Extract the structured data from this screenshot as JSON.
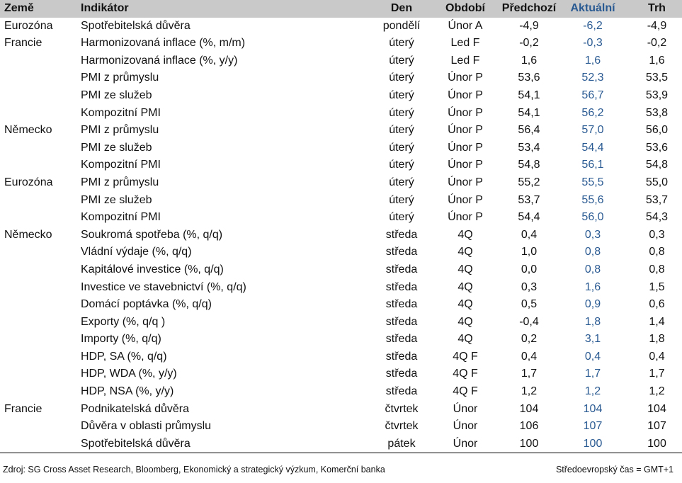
{
  "header": {
    "zeme": "Země",
    "indikator": "Indikátor",
    "den": "Den",
    "obdobi": "Období",
    "predchozi": "Předchozí",
    "aktualni": "Aktuální",
    "trh": "Trh"
  },
  "rows": [
    {
      "zeme": "Eurozóna",
      "indikator": "Spotřebitelská důvěra",
      "den": "pondělí",
      "obdobi": "Únor A",
      "predchozi": "-4,9",
      "aktualni": "-6,2",
      "trh": "-4,9"
    },
    {
      "zeme": "Francie",
      "indikator": "Harmonizovaná inflace (%, m/m)",
      "den": "úterý",
      "obdobi": "Led F",
      "predchozi": "-0,2",
      "aktualni": "-0,3",
      "trh": "-0,2"
    },
    {
      "zeme": "",
      "indikator": "Harmonizovaná inflace (%, y/y)",
      "den": "úterý",
      "obdobi": "Led F",
      "predchozi": "1,6",
      "aktualni": "1,6",
      "trh": "1,6"
    },
    {
      "zeme": "",
      "indikator": "PMI z průmyslu",
      "den": "úterý",
      "obdobi": "Únor P",
      "predchozi": "53,6",
      "aktualni": "52,3",
      "trh": "53,5"
    },
    {
      "zeme": "",
      "indikator": "PMI ze služeb",
      "den": "úterý",
      "obdobi": "Únor P",
      "predchozi": "54,1",
      "aktualni": "56,7",
      "trh": "53,9"
    },
    {
      "zeme": "",
      "indikator": "Kompozitní PMI",
      "den": "úterý",
      "obdobi": "Únor P",
      "predchozi": "54,1",
      "aktualni": "56,2",
      "trh": "53,8"
    },
    {
      "zeme": "Německo",
      "indikator": "PMI z průmyslu",
      "den": "úterý",
      "obdobi": "Únor P",
      "predchozi": "56,4",
      "aktualni": "57,0",
      "trh": "56,0"
    },
    {
      "zeme": "",
      "indikator": "PMI ze služeb",
      "den": "úterý",
      "obdobi": "Únor P",
      "predchozi": "53,4",
      "aktualni": "54,4",
      "trh": "53,6"
    },
    {
      "zeme": "",
      "indikator": "Kompozitní PMI",
      "den": "úterý",
      "obdobi": "Únor P",
      "predchozi": "54,8",
      "aktualni": "56,1",
      "trh": "54,8"
    },
    {
      "zeme": "Eurozóna",
      "indikator": "PMI z průmyslu",
      "den": "úterý",
      "obdobi": "Únor P",
      "predchozi": "55,2",
      "aktualni": "55,5",
      "trh": "55,0"
    },
    {
      "zeme": "",
      "indikator": "PMI ze služeb",
      "den": "úterý",
      "obdobi": "Únor P",
      "predchozi": "53,7",
      "aktualni": "55,6",
      "trh": "53,7"
    },
    {
      "zeme": "",
      "indikator": "Kompozitní PMI",
      "den": "úterý",
      "obdobi": "Únor P",
      "predchozi": "54,4",
      "aktualni": "56,0",
      "trh": "54,3"
    },
    {
      "zeme": "Německo",
      "indikator": "Soukromá spotřeba (%, q/q)",
      "den": "středa",
      "obdobi": "4Q",
      "predchozi": "0,4",
      "aktualni": "0,3",
      "trh": "0,3"
    },
    {
      "zeme": "",
      "indikator": "Vládní výdaje (%, q/q)",
      "den": "středa",
      "obdobi": "4Q",
      "predchozi": "1,0",
      "aktualni": "0,8",
      "trh": "0,8"
    },
    {
      "zeme": "",
      "indikator": "Kapitálové investice (%, q/q)",
      "den": "středa",
      "obdobi": "4Q",
      "predchozi": "0,0",
      "aktualni": "0,8",
      "trh": "0,8"
    },
    {
      "zeme": "",
      "indikator": "Investice ve stavebnictví (%, q/q)",
      "den": "středa",
      "obdobi": "4Q",
      "predchozi": "0,3",
      "aktualni": "1,6",
      "trh": "1,5"
    },
    {
      "zeme": "",
      "indikator": "Domácí poptávka (%, q/q)",
      "den": "středa",
      "obdobi": "4Q",
      "predchozi": "0,5",
      "aktualni": "0,9",
      "trh": "0,6"
    },
    {
      "zeme": "",
      "indikator": "Exporty (%, q/q )",
      "den": "středa",
      "obdobi": "4Q",
      "predchozi": "-0,4",
      "aktualni": "1,8",
      "trh": "1,4"
    },
    {
      "zeme": "",
      "indikator": "Importy (%, q/q)",
      "den": "středa",
      "obdobi": "4Q",
      "predchozi": "0,2",
      "aktualni": "3,1",
      "trh": "1,8"
    },
    {
      "zeme": "",
      "indikator": "HDP, SA (%, q/q)",
      "den": "středa",
      "obdobi": "4Q F",
      "predchozi": "0,4",
      "aktualni": "0,4",
      "trh": "0,4"
    },
    {
      "zeme": "",
      "indikator": "HDP, WDA (%, y/y)",
      "den": "středa",
      "obdobi": "4Q F",
      "predchozi": "1,7",
      "aktualni": "1,7",
      "trh": "1,7"
    },
    {
      "zeme": "",
      "indikator": "HDP, NSA (%, y/y)",
      "den": "středa",
      "obdobi": "4Q F",
      "predchozi": "1,2",
      "aktualni": "1,2",
      "trh": "1,2"
    },
    {
      "zeme": "Francie",
      "indikator": "Podnikatelská důvěra",
      "den": "čtvrtek",
      "obdobi": "Únor",
      "predchozi": "104",
      "aktualni": "104",
      "trh": "104"
    },
    {
      "zeme": "",
      "indikator": "Důvěra v oblasti průmyslu",
      "den": "čtvrtek",
      "obdobi": "Únor",
      "predchozi": "106",
      "aktualni": "107",
      "trh": "107"
    },
    {
      "zeme": "",
      "indikator": "Spotřebitelská důvěra",
      "den": "pátek",
      "obdobi": "Únor",
      "predchozi": "100",
      "aktualni": "100",
      "trh": "100"
    }
  ],
  "footer": {
    "source": "Zdroj: SG Cross Asset Research, Bloomberg, Ekonomický a strategický výzkum, Komerční banka",
    "timezone": "Středoevropský čas = GMT+1"
  },
  "colors": {
    "header_bg": "#c9c9c9",
    "actual_text": "#2a5a92"
  }
}
